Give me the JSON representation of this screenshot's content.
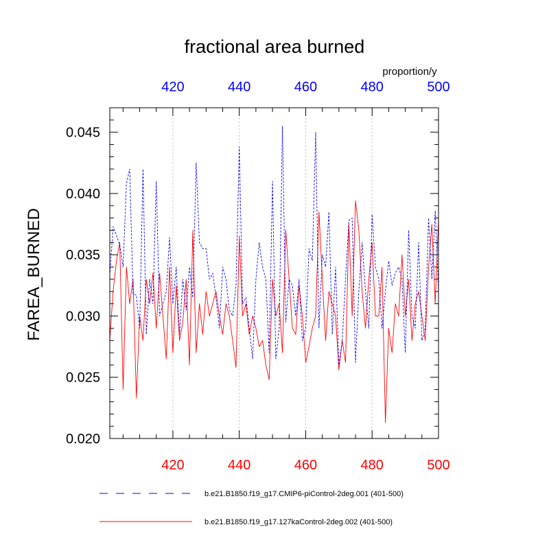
{
  "chart_data": {
    "type": "line",
    "title": "fractional area burned",
    "ylabel": "FAREA_BURNED",
    "units": "proportion/y",
    "xlim": [
      401,
      500
    ],
    "ylim": [
      0.02,
      0.047
    ],
    "grid": "vertical dashed at major x ticks",
    "top_axis": {
      "color": "#0000ff",
      "ticks": [
        "420",
        "440",
        "460",
        "480",
        "500"
      ]
    },
    "bottom_axis": {
      "color": "#ff0000",
      "ticks": [
        "420",
        "440",
        "460",
        "480",
        "500"
      ]
    },
    "y_ticks": [
      "0.020",
      "0.025",
      "0.030",
      "0.035",
      "0.040",
      "0.045"
    ],
    "legend_position": "bottom",
    "series": [
      {
        "name": "b.e21.B1850.f19_g17.CMIP6-piControl-2deg.001 (401-500)",
        "color": "#0000ff",
        "dash": "dashed",
        "x_start": 401,
        "values": [
          0.0333,
          0.0373,
          0.0366,
          0.0358,
          0.034,
          0.0408,
          0.042,
          0.0318,
          0.0317,
          0.029,
          0.042,
          0.0285,
          0.033,
          0.031,
          0.041,
          0.03,
          0.031,
          0.032,
          0.0364,
          0.031,
          0.034,
          0.0285,
          0.033,
          0.0305,
          0.034,
          0.0315,
          0.0425,
          0.036,
          0.0355,
          0.0355,
          0.033,
          0.0335,
          0.0315,
          0.029,
          0.034,
          0.033,
          0.0305,
          0.03,
          0.0325,
          0.0438,
          0.031,
          0.0315,
          0.029,
          0.0265,
          0.033,
          0.036,
          0.034,
          0.033,
          0.027,
          0.041,
          0.0265,
          0.029,
          0.0455,
          0.0295,
          0.033,
          0.0325,
          0.03,
          0.033,
          0.028,
          0.029,
          0.0355,
          0.0345,
          0.045,
          0.029,
          0.035,
          0.034,
          0.0385,
          0.0285,
          0.034,
          0.026,
          0.028,
          0.033,
          0.0378,
          0.038,
          0.0262,
          0.032,
          0.036,
          0.032,
          0.029,
          0.0383,
          0.034,
          0.033,
          0.029,
          0.032,
          0.0345,
          0.0325,
          0.0335,
          0.034,
          0.033,
          0.027,
          0.037,
          0.03,
          0.029,
          0.036,
          0.028,
          0.029,
          0.038,
          0.033,
          0.0386,
          0.032
        ]
      },
      {
        "name": "b.e21.B1850.f19_g17.127kaControl-2deg.002 (401-500)",
        "color": "#ff0000",
        "dash": "solid",
        "x_start": 401,
        "values": [
          0.028,
          0.032,
          0.0345,
          0.036,
          0.024,
          0.034,
          0.031,
          0.033,
          0.0233,
          0.03,
          0.028,
          0.033,
          0.031,
          0.0335,
          0.029,
          0.0335,
          0.03,
          0.0265,
          0.034,
          0.027,
          0.0325,
          0.028,
          0.0295,
          0.033,
          0.026,
          0.037,
          0.027,
          0.031,
          0.0285,
          0.032,
          0.03,
          0.031,
          0.032,
          0.03,
          0.0285,
          0.031,
          0.03,
          0.028,
          0.0258,
          0.0365,
          0.03,
          0.031,
          0.0285,
          0.03,
          0.029,
          0.0275,
          0.028,
          0.026,
          0.0248,
          0.033,
          0.03,
          0.031,
          0.027,
          0.037,
          0.033,
          0.029,
          0.0285,
          0.0325,
          0.03,
          0.0262,
          0.0275,
          0.029,
          0.03,
          0.0385,
          0.033,
          0.028,
          0.032,
          0.031,
          0.03,
          0.0256,
          0.028,
          0.0262,
          0.0375,
          0.03,
          0.0394,
          0.037,
          0.032,
          0.029,
          0.033,
          0.036,
          0.03,
          0.03,
          0.034,
          0.0213,
          0.029,
          0.027,
          0.031,
          0.03,
          0.035,
          0.03,
          0.033,
          0.028,
          0.031,
          0.032,
          0.03,
          0.028,
          0.034,
          0.0375,
          0.031,
          0.038
        ]
      }
    ]
  }
}
